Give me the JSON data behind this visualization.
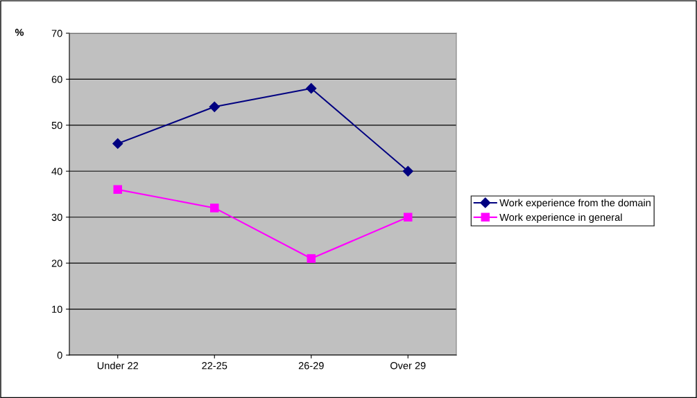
{
  "chart_data": {
    "type": "line",
    "ylabel": "%",
    "categories": [
      "Under 22",
      "22-25",
      "26-29",
      "Over 29"
    ],
    "series": [
      {
        "name": "Work experience from the domain",
        "color": "#000080",
        "marker": "diamond",
        "values": [
          46,
          54,
          58,
          40
        ]
      },
      {
        "name": "Work experience in general",
        "color": "#ff00ff",
        "marker": "square",
        "values": [
          36,
          32,
          21,
          30
        ]
      }
    ],
    "ylim": [
      0,
      70
    ],
    "yticks": [
      0,
      10,
      20,
      30,
      40,
      50,
      60,
      70
    ],
    "grid": "y",
    "legend": "right"
  }
}
